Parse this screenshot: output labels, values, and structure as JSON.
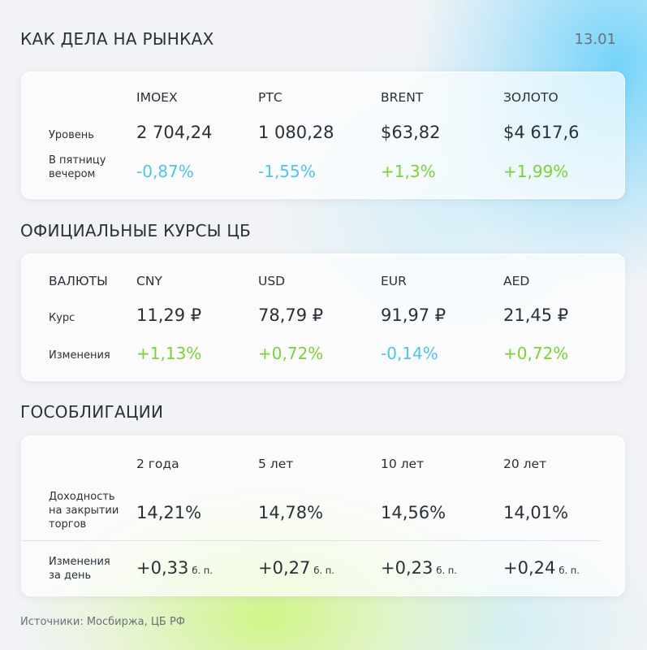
{
  "header": {
    "title": "КАК ДЕЛА НА РЫНКАХ",
    "date": "13.01"
  },
  "markets": {
    "columns": [
      "IMOEX",
      "РТС",
      "BRENT",
      "ЗОЛОТО"
    ],
    "row_level_label": "Уровень",
    "row_change_label_line1": "В пятницу",
    "row_change_label_line2": "вечером",
    "levels": [
      "2 704,24",
      "1 080,28",
      "$63,82",
      "$4 617,6"
    ],
    "changes": [
      "-0,87%",
      "-1,55%",
      "+1,3%",
      "+1,99%"
    ],
    "change_colors": [
      "#4fc3e8",
      "#4fc3e8",
      "#7cd136",
      "#7cd136"
    ]
  },
  "rates": {
    "title": "ОФИЦИАЛЬНЫЕ КУРСЫ ЦБ",
    "corner_label": "ВАЛЮТЫ",
    "columns": [
      "CNY",
      "USD",
      "EUR",
      "AED"
    ],
    "row_rate_label": "Курс",
    "row_change_label": "Изменения",
    "rates": [
      "11,29 ₽",
      "78,79 ₽",
      "91,97 ₽",
      "21,45 ₽"
    ],
    "changes": [
      "+1,13%",
      "+0,72%",
      "-0,14%",
      "+0,72%"
    ],
    "change_colors": [
      "#7cd136",
      "#7cd136",
      "#4fc3e8",
      "#7cd136"
    ]
  },
  "bonds": {
    "title": "ГОСОБЛИГАЦИИ",
    "columns": [
      "2 года",
      "5 лет",
      "10 лет",
      "20 лет"
    ],
    "row_yield_label_line1": "Доходность",
    "row_yield_label_line2": "на закрытии",
    "row_yield_label_line3": "торгов",
    "row_change_label_line1": "Изменения",
    "row_change_label_line2": "за день",
    "yields": [
      "14,21%",
      "14,78%",
      "14,56%",
      "14,01%"
    ],
    "changes": [
      "+0,33",
      "+0,27",
      "+0,23",
      "+0,24"
    ],
    "unit": "б. п."
  },
  "footer": {
    "source": "Источники: Мосбиржа, ЦБ РФ"
  }
}
